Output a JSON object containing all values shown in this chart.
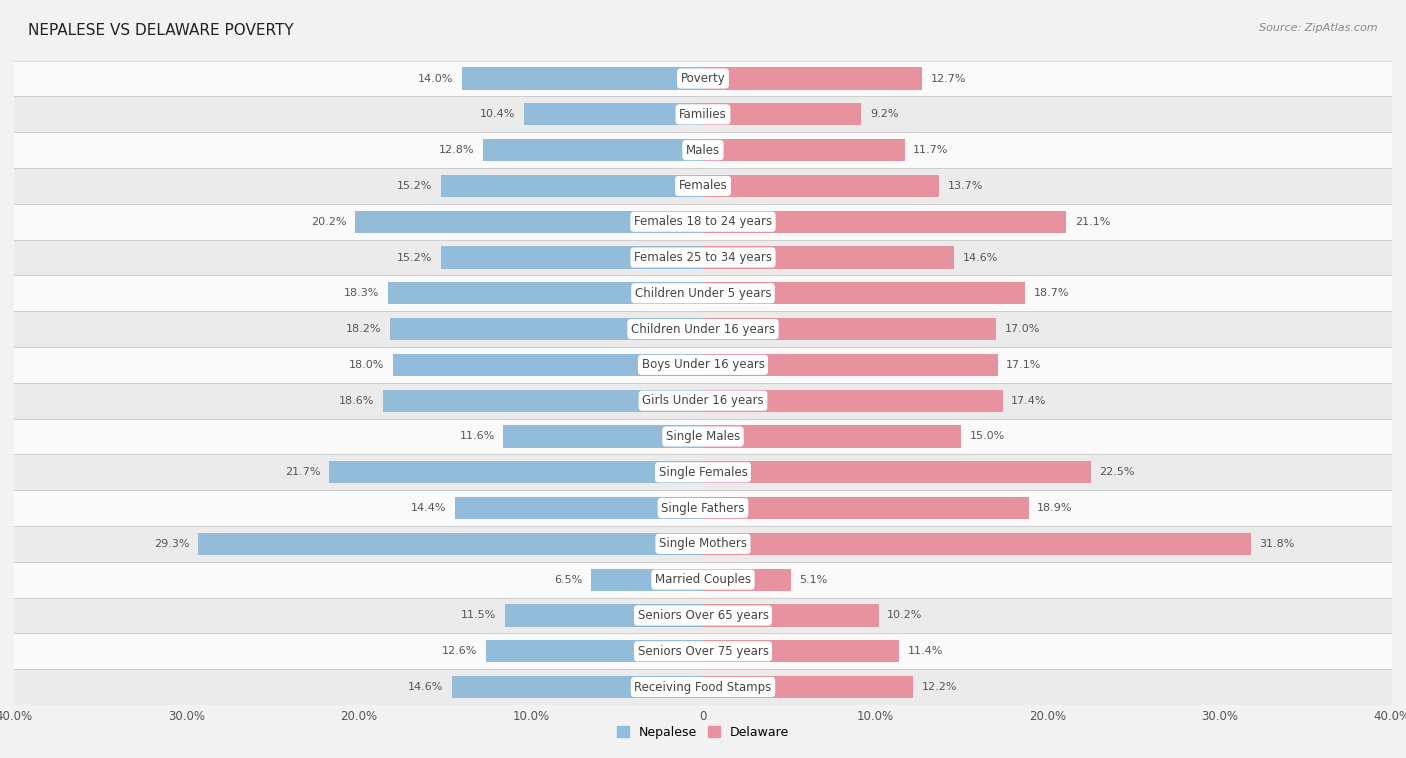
{
  "title": "NEPALESE VS DELAWARE POVERTY",
  "source": "Source: ZipAtlas.com",
  "categories": [
    "Poverty",
    "Families",
    "Males",
    "Females",
    "Females 18 to 24 years",
    "Females 25 to 34 years",
    "Children Under 5 years",
    "Children Under 16 years",
    "Boys Under 16 years",
    "Girls Under 16 years",
    "Single Males",
    "Single Females",
    "Single Fathers",
    "Single Mothers",
    "Married Couples",
    "Seniors Over 65 years",
    "Seniors Over 75 years",
    "Receiving Food Stamps"
  ],
  "nepalese": [
    14.0,
    10.4,
    12.8,
    15.2,
    20.2,
    15.2,
    18.3,
    18.2,
    18.0,
    18.6,
    11.6,
    21.7,
    14.4,
    29.3,
    6.5,
    11.5,
    12.6,
    14.6
  ],
  "delaware": [
    12.7,
    9.2,
    11.7,
    13.7,
    21.1,
    14.6,
    18.7,
    17.0,
    17.1,
    17.4,
    15.0,
    22.5,
    18.9,
    31.8,
    5.1,
    10.2,
    11.4,
    12.2
  ],
  "nepalese_color": "#92bcd9",
  "delaware_color": "#e8929f",
  "background_color": "#f2f2f2",
  "row_bg_light": "#fafafa",
  "row_bg_dark": "#ebebeb",
  "axis_limit": 40.0,
  "bar_height": 0.62,
  "legend_labels": [
    "Nepalese",
    "Delaware"
  ],
  "label_color": "#555555",
  "value_fontsize": 8.0,
  "cat_fontsize": 8.5
}
